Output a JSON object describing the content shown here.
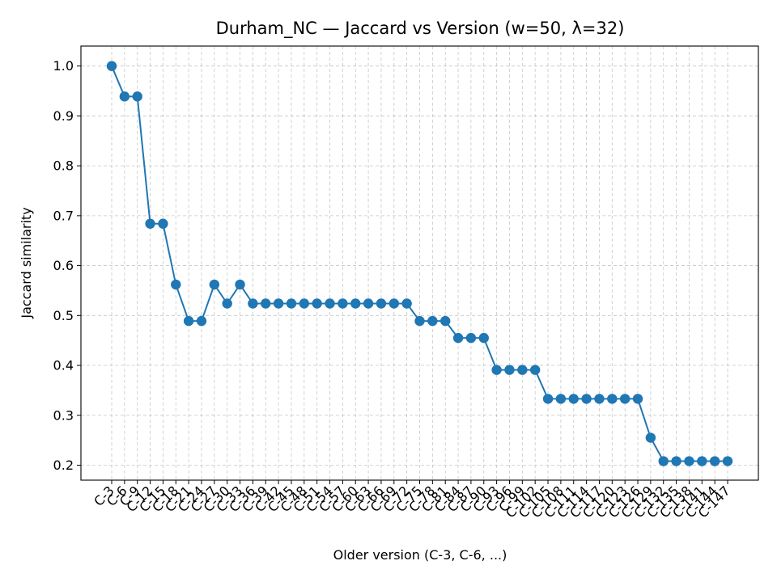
{
  "chart_data": {
    "type": "line",
    "title": "Durham_NC — Jaccard vs Version (w=50, λ=32)",
    "xlabel": "Older version (C-3, C-6, ...)",
    "ylabel": "Jaccard similarity",
    "categories": [
      "C-3",
      "C-6",
      "C-9",
      "C-12",
      "C-15",
      "C-18",
      "C-21",
      "C-24",
      "C-27",
      "C-30",
      "C-33",
      "C-36",
      "C-39",
      "C-42",
      "C-45",
      "C-48",
      "C-51",
      "C-54",
      "C-57",
      "C-60",
      "C-63",
      "C-66",
      "C-69",
      "C-72",
      "C-75",
      "C-78",
      "C-81",
      "C-84",
      "C-87",
      "C-90",
      "C-93",
      "C-96",
      "C-99",
      "C-102",
      "C-105",
      "C-108",
      "C-111",
      "C-114",
      "C-117",
      "C-120",
      "C-123",
      "C-126",
      "C-129",
      "C-132",
      "C-135",
      "C-138",
      "C-141",
      "C-144",
      "C-147"
    ],
    "series": [
      {
        "values": [
          1.0,
          0.939,
          0.939,
          0.684,
          0.684,
          0.562,
          0.489,
          0.489,
          0.562,
          0.524,
          0.562,
          0.524,
          0.524,
          0.524,
          0.524,
          0.524,
          0.524,
          0.524,
          0.524,
          0.524,
          0.524,
          0.524,
          0.524,
          0.524,
          0.489,
          0.489,
          0.489,
          0.455,
          0.455,
          0.455,
          0.391,
          0.391,
          0.391,
          0.391,
          0.333,
          0.333,
          0.333,
          0.333,
          0.333,
          0.333,
          0.333,
          0.333,
          0.255,
          0.208,
          0.208,
          0.208,
          0.208,
          0.208,
          0.208
        ],
        "color": "#1f77b4"
      }
    ],
    "yticks": [
      "0.2",
      "0.3",
      "0.4",
      "0.5",
      "0.6",
      "0.7",
      "0.8",
      "0.9",
      "1.0"
    ],
    "ylim": [
      0.17,
      1.04
    ],
    "grid": true
  }
}
